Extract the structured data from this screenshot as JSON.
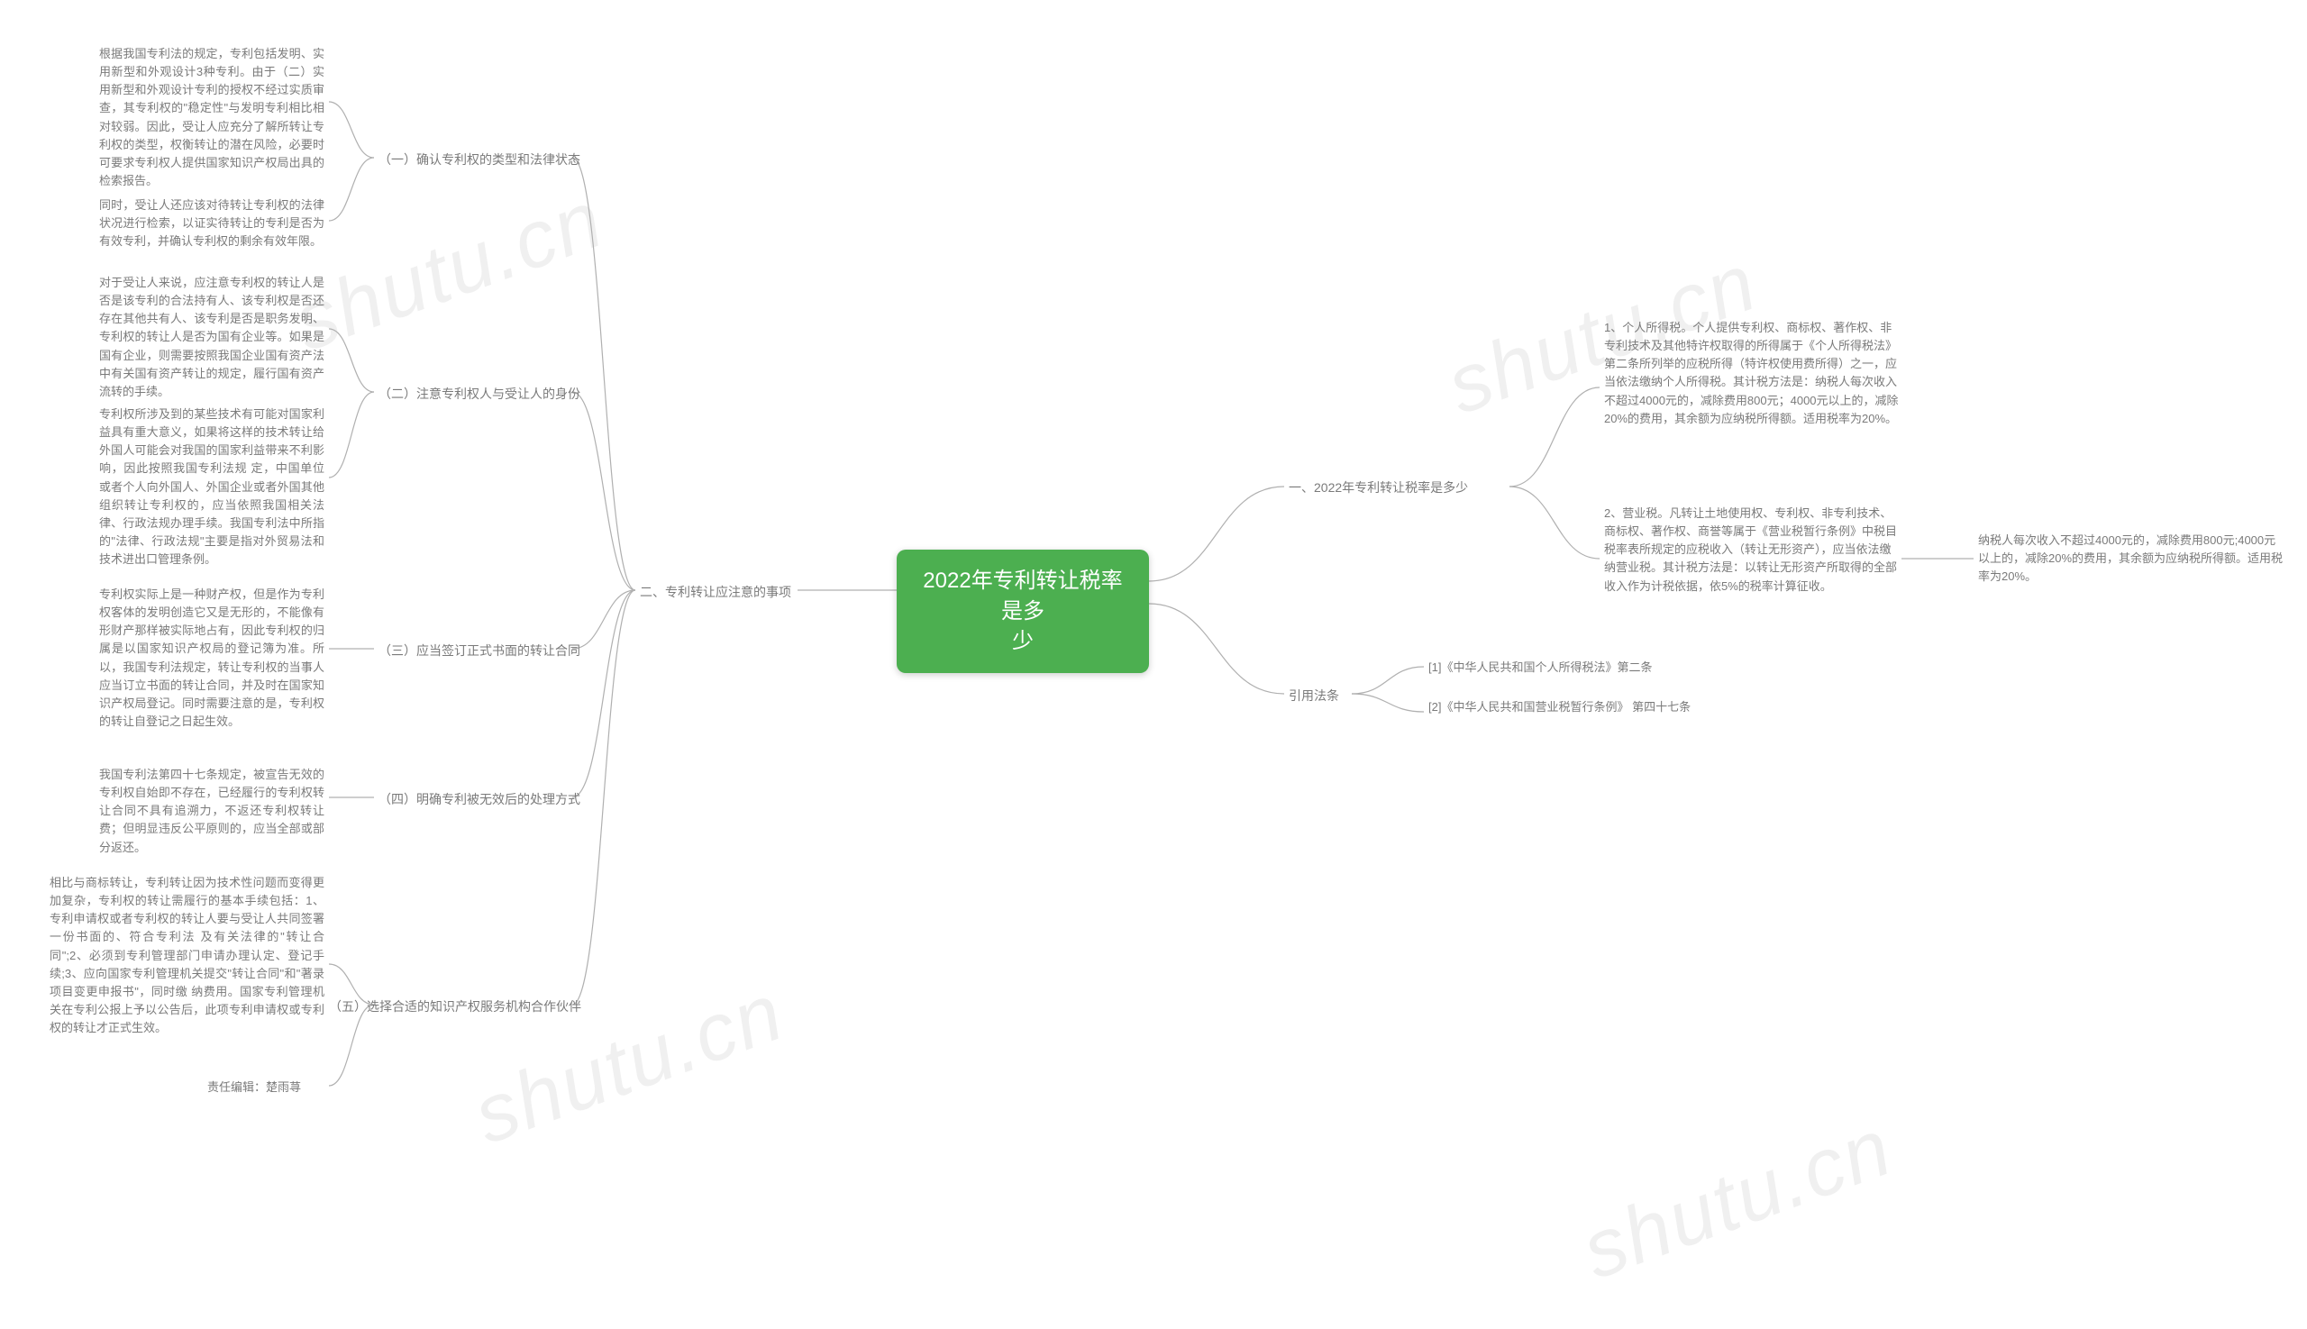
{
  "watermark": "shutu.cn",
  "center": {
    "title": "2022年专利转让税率是多\n少",
    "bg": "#4caf50",
    "text_color": "#ffffff",
    "fontsize": 24
  },
  "right": {
    "branch1": {
      "label": "一、2022年专利转让税率是多少",
      "leaf1": "1、个人所得税。个人提供专利权、商标权、著作权、非专利技术及其他特许权取得的所得属于《个人所得税法》第二条所列举的应税所得（特许权使用费所得）之一，应当依法缴纳个人所得税。其计税方法是：纳税人每次收入不超过4000元的，减除费用800元；4000元以上的，减除20%的费用，其余额为应纳税所得额。适用税率为20%。",
      "leaf2": "2、营业税。凡转让土地使用权、专利权、非专利技术、商标权、著作权、商誉等属于《营业税暂行条例》中税目税率表所规定的应税收入（转让无形资产），应当依法缴纳营业税。其计税方法是：以转让无形资产所取得的全部收入作为计税依据，依5%的税率计算征收。",
      "leaf2_extra": "纳税人每次收入不超过4000元的，减除费用800元;4000元以上的，减除20%的费用，其余额为应纳税所得额。适用税率为20%。"
    },
    "branch2": {
      "label": "引用法条",
      "ref1": "[1]《中华人民共和国个人所得税法》第二条",
      "ref2": "[2]《中华人民共和国营业税暂行条例》 第四十七条"
    }
  },
  "left": {
    "branch": {
      "label": "二、专利转让应注意的事项",
      "sub1": {
        "label": "（一）确认专利权的类型和法律状态",
        "p1": "根据我国专利法的规定，专利包括发明、实用新型和外观设计3种专利。由于（二）实用新型和外观设计专利的授权不经过实质审查，其专利权的\"稳定性\"与发明专利相比相对较弱。因此，受让人应充分了解所转让专利权的类型，权衡转让的潜在风险，必要时可要求专利权人提供国家知识产权局出具的检索报告。",
        "p2": "同时，受让人还应该对待转让专利权的法律状况进行检索，以证实待转让的专利是否为有效专利，并确认专利权的剩余有效年限。"
      },
      "sub2": {
        "label": "（二）注意专利权人与受让人的身份",
        "p1": "对于受让人来说，应注意专利权的转让人是否是该专利的合法持有人、该专利权是否还存在其他共有人、该专利是否是职务发明、专利权的转让人是否为国有企业等。如果是国有企业，则需要按照我国企业国有资产法中有关国有资产转让的规定，履行国有资产流转的手续。",
        "p2": "专利权所涉及到的某些技术有可能对国家利益具有重大意义，如果将这样的技术转让给外国人可能会对我国的国家利益带来不利影响，因此按照我国专利法规 定，中国单位或者个人向外国人、外国企业或者外国其他组织转让专利权的，应当依照我国相关法律、行政法规办理手续。我国专利法中所指的\"法律、行政法规\"主要是指对外贸易法和技术进出口管理条例。"
      },
      "sub3": {
        "label": "（三）应当签订正式书面的转让合同",
        "p1": "专利权实际上是一种财产权，但是作为专利权客体的发明创造它又是无形的，不能像有形财产那样被实际地占有，因此专利权的归属是以国家知识产权局的登记簿为准。所以，我国专利法规定，转让专利权的当事人应当订立书面的转让合同，并及时在国家知识产权局登记。同时需要注意的是，专利权的转让自登记之日起生效。"
      },
      "sub4": {
        "label": "（四）明确专利被无效后的处理方式",
        "p1": "我国专利法第四十七条规定，被宣告无效的专利权自始即不存在，已经履行的专利权转让合同不具有追溯力，不返还专利权转让费；但明显违反公平原则的，应当全部或部分返还。"
      },
      "sub5": {
        "label": "（五）选择合适的知识产权服务机构合作伙伴",
        "p1": "相比与商标转让，专利转让因为技术性问题而变得更加复杂，专利权的转让需履行的基本手续包括：1、专利申请权或者专利权的转让人要与受让人共同签署一份书面的、符合专利法 及有关法律的\"转让合同\";2、必须到专利管理部门申请办理认定、登记手续;3、应向国家专利管理机关提交\"转让合同\"和\"著录项目变更申报书\"，同时缴 纳费用。国家专利管理机关在专利公报上予以公告后，此项专利申请权或专利权的转让才正式生效。",
        "p2": "责任编辑：楚雨荨"
      }
    }
  },
  "colors": {
    "line": "#b0b0b0",
    "text": "#7a7a7a",
    "bg": "#ffffff"
  }
}
